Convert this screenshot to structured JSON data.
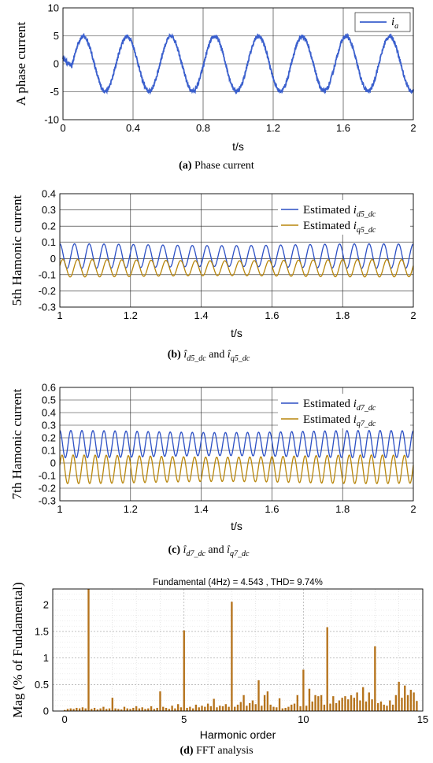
{
  "chart_data": [
    {
      "id": "a",
      "type": "line",
      "caption_label": "(a)",
      "caption_text": "Phase current",
      "ylabel": "A phase current",
      "xlabel": "t/s",
      "xlim": [
        0,
        2
      ],
      "ylim": [
        -10,
        10
      ],
      "xticks": [
        0,
        0.4,
        0.8,
        1.2,
        1.6,
        2
      ],
      "xtick_labels": [
        "0",
        "0.4",
        "0.8",
        "1.2",
        "1.6",
        "2"
      ],
      "yticks": [
        -10,
        -5,
        0,
        5,
        10
      ],
      "ytick_labels": [
        "-10",
        "-5",
        "0",
        "5",
        "10"
      ],
      "grid": true,
      "legend_position": "top-right",
      "series": [
        {
          "name": "i_a",
          "color": "#3a5fcd",
          "amplitude": 4.9,
          "frequency_hz": 4,
          "noise": 0.35,
          "start_transient": "sinusoid settling from ~1.5 at t=0"
        }
      ]
    },
    {
      "id": "b",
      "type": "line",
      "caption_label": "(b)",
      "caption_parts": [
        "î",
        "d5_dc",
        "and",
        "î",
        "q5_dc"
      ],
      "ylabel": "5th Hamonic current",
      "xlabel": "t/s",
      "xlim": [
        1,
        2
      ],
      "ylim": [
        -0.3,
        0.4
      ],
      "xticks": [
        1,
        1.2,
        1.4,
        1.6,
        1.8,
        2
      ],
      "xtick_labels": [
        "1",
        "1.2",
        "1.4",
        "1.6",
        "1.8",
        "2"
      ],
      "yticks": [
        -0.3,
        -0.2,
        -0.1,
        0,
        0.1,
        0.2,
        0.3,
        0.4
      ],
      "ytick_labels": [
        "-0.3",
        "-0.2",
        "-0.1",
        "0",
        "0.1",
        "0.2",
        "0.3",
        "0.4"
      ],
      "grid": true,
      "legend_position": "top-right",
      "series": [
        {
          "name_prefix": "Estimated",
          "name_sym": "i",
          "name_sub": "d5_dc",
          "color": "#2b4fc4",
          "mean": 0.015,
          "amplitude": 0.07,
          "frequency_hz": 24
        },
        {
          "name_prefix": "Estimated",
          "name_sym": "i",
          "name_sub": "q5_dc",
          "color": "#b8860b",
          "mean": -0.06,
          "amplitude": 0.05,
          "frequency_hz": 24
        }
      ]
    },
    {
      "id": "c",
      "type": "line",
      "caption_label": "(c)",
      "caption_parts": [
        "î",
        "d7_dc",
        "and",
        "î",
        "q7_dc"
      ],
      "ylabel": "7th Hamonic current",
      "xlabel": "t/s",
      "xlim": [
        1,
        2
      ],
      "ylim": [
        -0.3,
        0.6
      ],
      "xticks": [
        1,
        1.2,
        1.4,
        1.6,
        1.8,
        2
      ],
      "xtick_labels": [
        "1",
        "1.2",
        "1.4",
        "1.6",
        "1.8",
        "2"
      ],
      "yticks": [
        -0.3,
        -0.2,
        -0.1,
        0,
        0.1,
        0.2,
        0.3,
        0.4,
        0.5,
        0.6
      ],
      "ytick_labels": [
        "-0.3",
        "-0.2",
        "-0.1",
        "0",
        "0.1",
        "0.2",
        "0.3",
        "0.4",
        "0.5",
        "0.6"
      ],
      "grid": true,
      "legend_position": "top-right",
      "series": [
        {
          "name_prefix": "Estimated",
          "name_sym": "i",
          "name_sub": "d7_dc",
          "color": "#2b4fc4",
          "mean": 0.15,
          "amplitude": 0.1,
          "frequency_hz": 32
        },
        {
          "name_prefix": "Estimated",
          "name_sym": "i",
          "name_sub": "q7_dc",
          "color": "#b8860b",
          "mean": -0.05,
          "amplitude": 0.105,
          "frequency_hz": 32
        }
      ]
    },
    {
      "id": "d",
      "type": "bar",
      "caption_label": "(d)",
      "caption_text": "FFT analysis",
      "title": "Fundamental (4Hz) = 4.543 , THD= 9.74%",
      "ylabel": "Mag (% of Fundamental)",
      "xlabel": "Harmonic order",
      "xlim": [
        -0.5,
        15
      ],
      "ylim": [
        0,
        2.3
      ],
      "xticks": [
        0,
        5,
        10,
        15
      ],
      "xtick_labels": [
        "0",
        "5",
        "10",
        "15"
      ],
      "yticks": [
        0,
        0.5,
        1,
        1.5,
        2
      ],
      "ytick_labels": [
        "0",
        "0.5",
        "1",
        "1.5",
        "2"
      ],
      "grid": true,
      "color": "#b5731c",
      "x": [
        0.0,
        0.125,
        0.25,
        0.375,
        0.5,
        0.625,
        0.75,
        0.875,
        1.0,
        1.125,
        1.25,
        1.375,
        1.5,
        1.625,
        1.75,
        1.875,
        2.0,
        2.125,
        2.25,
        2.375,
        2.5,
        2.625,
        2.75,
        2.875,
        3.0,
        3.125,
        3.25,
        3.375,
        3.5,
        3.625,
        3.75,
        3.875,
        4.0,
        4.125,
        4.25,
        4.375,
        4.5,
        4.625,
        4.75,
        4.875,
        5.0,
        5.125,
        5.25,
        5.375,
        5.5,
        5.625,
        5.75,
        5.875,
        6.0,
        6.125,
        6.25,
        6.375,
        6.5,
        6.625,
        6.75,
        6.875,
        7.0,
        7.125,
        7.25,
        7.375,
        7.5,
        7.625,
        7.75,
        7.875,
        8.0,
        8.125,
        8.25,
        8.375,
        8.5,
        8.625,
        8.75,
        8.875,
        9.0,
        9.125,
        9.25,
        9.375,
        9.5,
        9.625,
        9.75,
        9.875,
        10.0,
        10.125,
        10.25,
        10.375,
        10.5,
        10.625,
        10.75,
        10.875,
        11.0,
        11.125,
        11.25,
        11.375,
        11.5,
        11.625,
        11.75,
        11.875,
        12.0,
        12.125,
        12.25,
        12.375,
        12.5,
        12.625,
        12.75,
        12.875,
        13.0,
        13.125,
        13.25,
        13.375,
        13.5,
        13.625,
        13.75,
        13.875,
        14.0,
        14.125,
        14.25,
        14.375,
        14.5,
        14.625,
        14.75
      ],
      "values": [
        0.02,
        0.04,
        0.05,
        0.04,
        0.06,
        0.05,
        0.07,
        0.05,
        2.3,
        0.04,
        0.06,
        0.03,
        0.05,
        0.08,
        0.04,
        0.05,
        0.25,
        0.05,
        0.04,
        0.03,
        0.08,
        0.05,
        0.04,
        0.06,
        0.09,
        0.05,
        0.07,
        0.04,
        0.05,
        0.09,
        0.04,
        0.06,
        0.37,
        0.08,
        0.06,
        0.04,
        0.1,
        0.05,
        0.13,
        0.07,
        1.52,
        0.06,
        0.08,
        0.05,
        0.12,
        0.07,
        0.1,
        0.08,
        0.14,
        0.09,
        0.23,
        0.07,
        0.1,
        0.09,
        0.13,
        0.08,
        2.06,
        0.08,
        0.12,
        0.17,
        0.3,
        0.1,
        0.15,
        0.2,
        0.13,
        0.58,
        0.1,
        0.3,
        0.37,
        0.12,
        0.08,
        0.07,
        0.24,
        0.05,
        0.06,
        0.08,
        0.12,
        0.14,
        0.3,
        0.09,
        0.78,
        0.1,
        0.42,
        0.18,
        0.3,
        0.28,
        0.3,
        0.12,
        1.58,
        0.14,
        0.28,
        0.15,
        0.2,
        0.25,
        0.28,
        0.22,
        0.3,
        0.25,
        0.35,
        0.2,
        0.45,
        0.18,
        0.35,
        0.22,
        1.22,
        0.15,
        0.18,
        0.12,
        0.1,
        0.2,
        0.12,
        0.3,
        0.55,
        0.25,
        0.48,
        0.3,
        0.4,
        0.35,
        0.19
      ]
    }
  ]
}
